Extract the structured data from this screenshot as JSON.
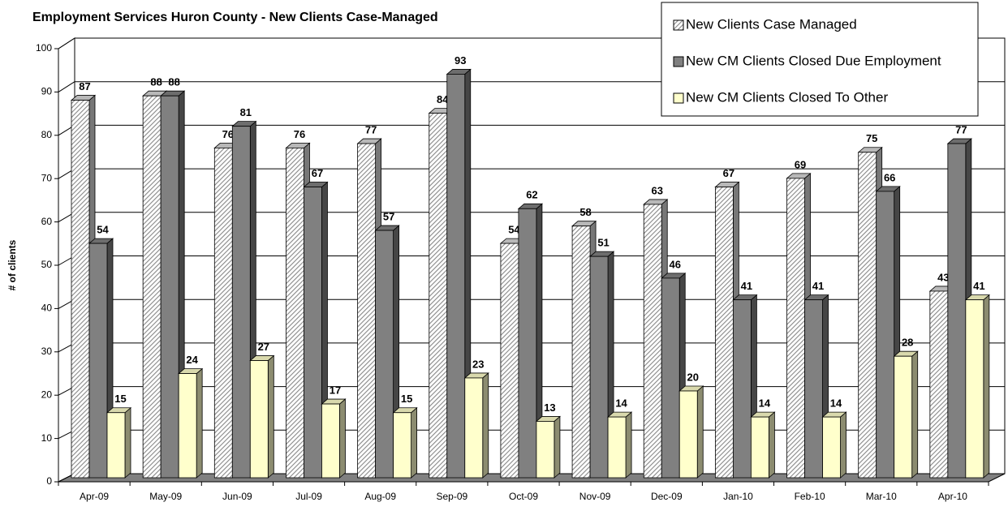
{
  "chart_data": {
    "type": "bar3d",
    "title": "Employment Services Huron County - New Clients Case-Managed",
    "y_axis_label": "# of clients",
    "categories": [
      "Apr-09",
      "May-09",
      "Jun-09",
      "Jul-09",
      "Aug-09",
      "Sep-09",
      "Oct-09",
      "Nov-09",
      "Dec-09",
      "Jan-10",
      "Feb-10",
      "Mar-10",
      "Apr-10"
    ],
    "series": [
      {
        "name": "New Clients Case Managed",
        "color": "#d9d9d9",
        "pattern": "diagonal-hatch",
        "values": [
          87,
          88,
          76,
          76,
          77,
          84,
          54,
          58,
          63,
          67,
          69,
          75,
          43
        ]
      },
      {
        "name": "New CM Clients Closed Due Employment",
        "color": "#808080",
        "values": [
          54,
          88,
          81,
          67,
          57,
          93,
          62,
          51,
          46,
          41,
          41,
          66,
          77
        ]
      },
      {
        "name": "New CM Clients Closed To Other",
        "color": "#ffffcc",
        "values": [
          15,
          24,
          27,
          17,
          15,
          23,
          13,
          14,
          20,
          14,
          14,
          28,
          41
        ]
      }
    ],
    "ylim": [
      0,
      100
    ],
    "yticks": [
      0,
      10,
      20,
      30,
      40,
      50,
      60,
      70,
      80,
      90,
      100
    ],
    "grid": true,
    "legend": "top-right"
  }
}
